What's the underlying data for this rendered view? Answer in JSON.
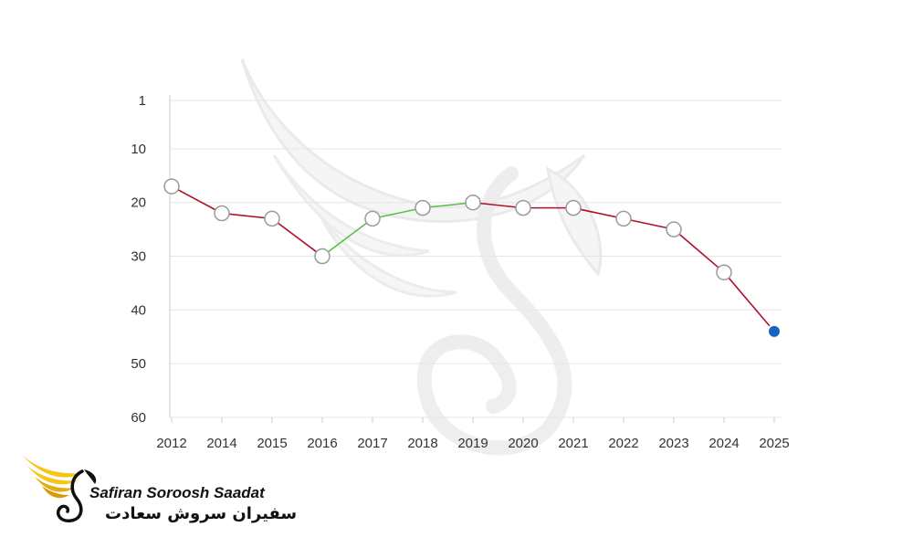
{
  "chart_data": {
    "type": "line",
    "x": [
      "2012",
      "2014",
      "2015",
      "2016",
      "2017",
      "2018",
      "2019",
      "2020",
      "2021",
      "2022",
      "2023",
      "2024",
      "2025"
    ],
    "values": [
      17,
      22,
      23,
      30,
      23,
      21,
      20,
      21,
      21,
      23,
      25,
      33,
      44
    ],
    "y_ticks": [
      1,
      10,
      20,
      30,
      40,
      50,
      60
    ],
    "ylim": [
      1,
      60
    ],
    "y_axis_inverted": true,
    "grid": true,
    "colors": {
      "declining_segment": "#b0102a",
      "improving_segment": "#5cc04a",
      "marker_fill": "#ffffff",
      "marker_stroke": "#9a9a9a",
      "latest_point": "#1565c0"
    },
    "highlight_last_point": true
  },
  "logo": {
    "name_en": "Safiran Soroosh Saadat",
    "name_fa": "سفیران سروش سعادت",
    "mark_icon": "golden-wing-swan-icon",
    "mark_colors": [
      "#f5c518",
      "#111111"
    ]
  },
  "watermark_icon": "winged-swan-watermark-icon"
}
